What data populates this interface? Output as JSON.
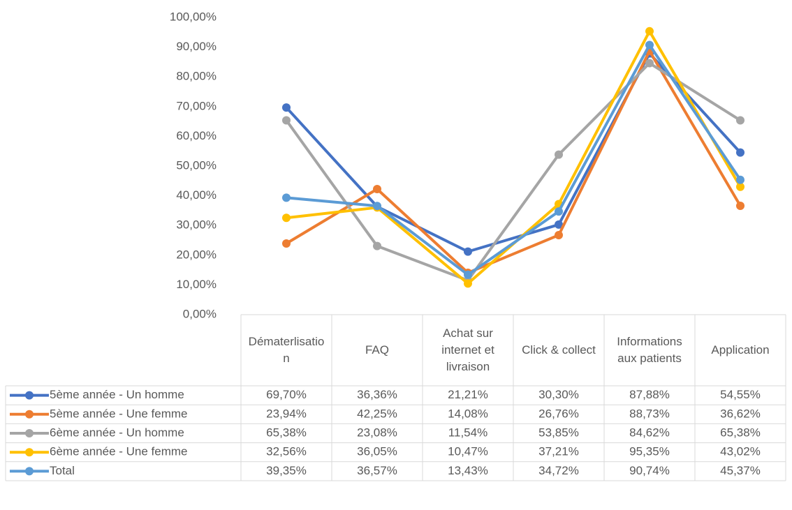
{
  "chart_data": {
    "type": "line",
    "categories": [
      "Dématerlisation",
      "FAQ",
      "Achat sur internet et livraison",
      "Click & collect",
      "Informations aux patients",
      "Application"
    ],
    "series": [
      {
        "name": "5ème année - Un homme",
        "color": "#4472c4",
        "values": [
          69.7,
          36.36,
          21.21,
          30.3,
          87.88,
          54.55
        ],
        "value_labels": [
          "69,70%",
          "36,36%",
          "21,21%",
          "30,30%",
          "87,88%",
          "54,55%"
        ]
      },
      {
        "name": "5ème année - Une femme",
        "color": "#ed7d31",
        "values": [
          23.94,
          42.25,
          14.08,
          26.76,
          88.73,
          36.62
        ],
        "value_labels": [
          "23,94%",
          "42,25%",
          "14,08%",
          "26,76%",
          "88,73%",
          "36,62%"
        ]
      },
      {
        "name": "6ème année - Un homme",
        "color": "#a5a5a5",
        "values": [
          65.38,
          23.08,
          11.54,
          53.85,
          84.62,
          65.38
        ],
        "value_labels": [
          "65,38%",
          "23,08%",
          "11,54%",
          "53,85%",
          "84,62%",
          "65,38%"
        ]
      },
      {
        "name": "6ème année - Une femme",
        "color": "#ffc000",
        "values": [
          32.56,
          36.05,
          10.47,
          37.21,
          95.35,
          43.02
        ],
        "value_labels": [
          "32,56%",
          "36,05%",
          "10,47%",
          "37,21%",
          "95,35%",
          "43,02%"
        ]
      },
      {
        "name": "Total",
        "color": "#5b9bd5",
        "values": [
          39.35,
          36.57,
          13.43,
          34.72,
          90.74,
          45.37
        ],
        "value_labels": [
          "39,35%",
          "36,57%",
          "13,43%",
          "34,72%",
          "90,74%",
          "45,37%"
        ]
      }
    ],
    "ylim": [
      0,
      100
    ],
    "yticks": [
      {
        "value": 0,
        "label": "0,00%"
      },
      {
        "value": 10,
        "label": "10,00%"
      },
      {
        "value": 20,
        "label": "20,00%"
      },
      {
        "value": 30,
        "label": "30,00%"
      },
      {
        "value": 40,
        "label": "40,00%"
      },
      {
        "value": 50,
        "label": "50,00%"
      },
      {
        "value": 60,
        "label": "60,00%"
      },
      {
        "value": 70,
        "label": "70,00%"
      },
      {
        "value": 80,
        "label": "80,00%"
      },
      {
        "value": 90,
        "label": "90,00%"
      },
      {
        "value": 100,
        "label": "100,00%"
      }
    ],
    "grid": false
  }
}
